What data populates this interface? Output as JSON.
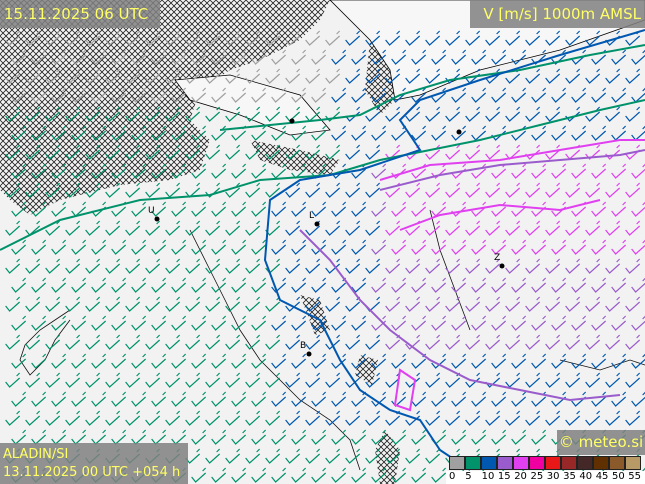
{
  "header": {
    "valid_time": "15.11.2025 06 UTC",
    "field_title": "V [m/s] 1000m AMSL"
  },
  "footer": {
    "model": "ALADIN/SI",
    "run_info": "13.11.2025 00 UTC +054 h",
    "copyright": "© meteo.si"
  },
  "legend": {
    "unit": "m/s",
    "labels": [
      "0",
      "5",
      "10",
      "15",
      "20",
      "25",
      "30",
      "35",
      "40",
      "45",
      "50",
      "55"
    ],
    "colors": [
      "#a0a0a0",
      "#00926a",
      "#0058b0",
      "#9a5ccc",
      "#e040f0",
      "#f000a0",
      "#e81818",
      "#982828",
      "#442828",
      "#603000",
      "#8a5a2a",
      "#b89a66"
    ]
  },
  "cities": [
    {
      "label": "U"
    },
    {
      "label": "L"
    },
    {
      "label": "B"
    },
    {
      "label": "Z"
    }
  ],
  "map": {
    "background_color": "#f2f2f2",
    "masked_area": "crosshatch"
  }
}
